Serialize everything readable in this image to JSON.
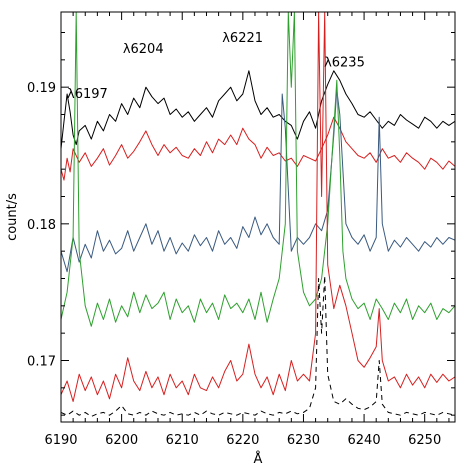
{
  "chart_data": {
    "type": "line",
    "title": "",
    "xlabel": "Å",
    "ylabel": "count/s",
    "xlim": [
      6190,
      6255
    ],
    "ylim": [
      0.1655,
      0.1955
    ],
    "grid": false,
    "legend": "none",
    "xticks": [
      6190,
      6200,
      6210,
      6220,
      6230,
      6240,
      6250
    ],
    "yticks": [
      0.17,
      0.18,
      0.19
    ],
    "ytick_labels": [
      "0.17",
      "0.18",
      "0.19"
    ],
    "annotations": [
      {
        "text": "λ6197",
        "x": 6191.0,
        "y": 0.1892
      },
      {
        "text": "λ6204",
        "x": 6200.2,
        "y": 0.1925
      },
      {
        "text": "λ6221",
        "x": 6216.6,
        "y": 0.1933
      },
      {
        "text": "λ6235",
        "x": 6233.4,
        "y": 0.1915
      }
    ],
    "series": [
      {
        "color": "#000000",
        "style": "solid",
        "x": [
          6190.0,
          6190.5,
          6191.0,
          6191.5,
          6192.0,
          6192.5,
          6193.0,
          6194.0,
          6195.0,
          6196.0,
          6197.0,
          6198.0,
          6199.0,
          6200.0,
          6201.0,
          6202.0,
          6203.0,
          6204.0,
          6205.0,
          6206.0,
          6207.0,
          6208.0,
          6209.0,
          6210.0,
          6211.0,
          6212.0,
          6213.0,
          6214.0,
          6215.0,
          6216.0,
          6217.0,
          6218.0,
          6219.0,
          6220.0,
          6221.0,
          6222.0,
          6223.0,
          6224.0,
          6225.0,
          6226.0,
          6227.0,
          6228.0,
          6229.0,
          6230.0,
          6231.0,
          6232.0,
          6233.0,
          6234.0,
          6235.0,
          6236.0,
          6237.0,
          6238.0,
          6239.0,
          6240.0,
          6241.0,
          6242.0,
          6243.0,
          6244.0,
          6245.0,
          6246.0,
          6247.0,
          6248.0,
          6249.0,
          6250.0,
          6251.0,
          6252.0,
          6253.0,
          6254.0,
          6255.0
        ],
        "y": [
          0.1855,
          0.1875,
          0.1895,
          0.1882,
          0.1865,
          0.1858,
          0.1868,
          0.1872,
          0.1862,
          0.1875,
          0.1868,
          0.188,
          0.1875,
          0.1888,
          0.188,
          0.1892,
          0.1885,
          0.19,
          0.1893,
          0.1888,
          0.1892,
          0.188,
          0.1884,
          0.1878,
          0.1882,
          0.1875,
          0.188,
          0.1885,
          0.1878,
          0.189,
          0.1895,
          0.19,
          0.189,
          0.1895,
          0.1912,
          0.189,
          0.188,
          0.1885,
          0.1878,
          0.188,
          0.1875,
          0.1872,
          0.1862,
          0.1875,
          0.1882,
          0.187,
          0.189,
          0.1902,
          0.1912,
          0.1905,
          0.1895,
          0.1888,
          0.188,
          0.1878,
          0.1882,
          0.1876,
          0.187,
          0.1875,
          0.1872,
          0.188,
          0.1876,
          0.1873,
          0.187,
          0.1878,
          0.1875,
          0.187,
          0.1875,
          0.1872,
          0.1875
        ]
      },
      {
        "color": "#d62020",
        "style": "solid",
        "x": [
          6190.0,
          6190.5,
          6191.0,
          6191.5,
          6192.0,
          6193.0,
          6194.0,
          6195.0,
          6196.0,
          6197.0,
          6198.0,
          6199.0,
          6200.0,
          6201.0,
          6202.0,
          6203.0,
          6204.0,
          6205.0,
          6206.0,
          6207.0,
          6208.0,
          6209.0,
          6210.0,
          6211.0,
          6212.0,
          6213.0,
          6214.0,
          6215.0,
          6216.0,
          6217.0,
          6218.0,
          6219.0,
          6220.0,
          6221.0,
          6222.0,
          6223.0,
          6224.0,
          6225.0,
          6226.0,
          6227.0,
          6228.0,
          6229.0,
          6230.0,
          6231.0,
          6232.0,
          6233.0,
          6234.0,
          6235.0,
          6236.0,
          6237.0,
          6238.0,
          6239.0,
          6240.0,
          6241.0,
          6242.0,
          6243.0,
          6244.0,
          6245.0,
          6246.0,
          6247.0,
          6248.0,
          6249.0,
          6250.0,
          6251.0,
          6252.0,
          6253.0,
          6254.0,
          6255.0
        ],
        "y": [
          0.184,
          0.1832,
          0.1848,
          0.1838,
          0.1855,
          0.1845,
          0.1852,
          0.1842,
          0.1848,
          0.1855,
          0.1843,
          0.185,
          0.1858,
          0.1848,
          0.1853,
          0.186,
          0.1868,
          0.1858,
          0.185,
          0.1858,
          0.1852,
          0.1856,
          0.185,
          0.1848,
          0.1855,
          0.185,
          0.186,
          0.1852,
          0.1862,
          0.1858,
          0.1865,
          0.1858,
          0.187,
          0.1862,
          0.1858,
          0.1848,
          0.1856,
          0.185,
          0.1852,
          0.1846,
          0.1848,
          0.1842,
          0.185,
          0.1848,
          0.1846,
          0.1855,
          0.1865,
          0.1878,
          0.187,
          0.186,
          0.1855,
          0.185,
          0.1848,
          0.1852,
          0.1845,
          0.1855,
          0.1848,
          0.185,
          0.1845,
          0.1852,
          0.1848,
          0.1845,
          0.184,
          0.1848,
          0.1845,
          0.184,
          0.1846,
          0.1842
        ]
      },
      {
        "color": "#3a5a80",
        "style": "solid",
        "x": [
          6190.0,
          6191.0,
          6192.0,
          6193.0,
          6194.0,
          6195.0,
          6196.0,
          6197.0,
          6198.0,
          6199.0,
          6200.0,
          6201.0,
          6202.0,
          6203.0,
          6204.0,
          6205.0,
          6206.0,
          6207.0,
          6208.0,
          6209.0,
          6210.0,
          6211.0,
          6212.0,
          6213.0,
          6214.0,
          6215.0,
          6216.0,
          6217.0,
          6218.0,
          6219.0,
          6220.0,
          6221.0,
          6222.0,
          6223.0,
          6224.0,
          6225.0,
          6226.0,
          6226.5,
          6227.0,
          6228.0,
          6229.0,
          6230.0,
          6231.0,
          6232.0,
          6233.0,
          6234.0,
          6235.0,
          6235.5,
          6236.0,
          6237.0,
          6238.0,
          6239.0,
          6240.0,
          6241.0,
          6242.0,
          6242.5,
          6243.0,
          6244.0,
          6245.0,
          6246.0,
          6247.0,
          6248.0,
          6249.0,
          6250.0,
          6251.0,
          6252.0,
          6253.0,
          6254.0,
          6255.0
        ],
        "y": [
          0.178,
          0.1765,
          0.179,
          0.1772,
          0.1785,
          0.1775,
          0.1795,
          0.178,
          0.1788,
          0.1778,
          0.1782,
          0.1795,
          0.178,
          0.179,
          0.18,
          0.1785,
          0.1795,
          0.178,
          0.179,
          0.1778,
          0.1786,
          0.178,
          0.1792,
          0.1784,
          0.179,
          0.178,
          0.1795,
          0.1785,
          0.179,
          0.1782,
          0.1798,
          0.179,
          0.1805,
          0.1792,
          0.18,
          0.179,
          0.1785,
          0.1895,
          0.187,
          0.178,
          0.179,
          0.1785,
          0.179,
          0.18,
          0.1795,
          0.181,
          0.1865,
          0.1898,
          0.188,
          0.18,
          0.179,
          0.1785,
          0.1792,
          0.178,
          0.179,
          0.1878,
          0.18,
          0.178,
          0.1788,
          0.1783,
          0.179,
          0.1785,
          0.178,
          0.1787,
          0.1783,
          0.179,
          0.1785,
          0.179,
          0.1788
        ]
      },
      {
        "color": "#2ea02e",
        "style": "solid",
        "x": [
          6190.0,
          6191.0,
          6192.0,
          6192.5,
          6193.0,
          6194.0,
          6195.0,
          6196.0,
          6197.0,
          6198.0,
          6199.0,
          6200.0,
          6201.0,
          6202.0,
          6203.0,
          6204.0,
          6205.0,
          6206.0,
          6207.0,
          6208.0,
          6209.0,
          6210.0,
          6211.0,
          6212.0,
          6213.0,
          6214.0,
          6215.0,
          6216.0,
          6217.0,
          6218.0,
          6219.0,
          6220.0,
          6221.0,
          6222.0,
          6223.0,
          6224.0,
          6225.0,
          6226.0,
          6227.0,
          6227.5,
          6228.0,
          6228.5,
          6229.0,
          6230.0,
          6231.0,
          6232.0,
          6233.0,
          6234.0,
          6235.0,
          6235.5,
          6236.0,
          6236.5,
          6237.0,
          6238.0,
          6239.0,
          6240.0,
          6241.0,
          6242.0,
          6243.0,
          6244.0,
          6245.0,
          6246.0,
          6247.0,
          6248.0,
          6249.0,
          6250.0,
          6251.0,
          6252.0,
          6253.0,
          6254.0,
          6255.0
        ],
        "y": [
          0.173,
          0.175,
          0.179,
          0.1955,
          0.178,
          0.174,
          0.1725,
          0.1742,
          0.173,
          0.1745,
          0.1728,
          0.174,
          0.1732,
          0.175,
          0.1735,
          0.1748,
          0.1738,
          0.1742,
          0.175,
          0.173,
          0.1745,
          0.1735,
          0.174,
          0.1728,
          0.1745,
          0.1735,
          0.1742,
          0.173,
          0.1748,
          0.1738,
          0.1742,
          0.1735,
          0.1745,
          0.173,
          0.175,
          0.1728,
          0.1745,
          0.176,
          0.18,
          0.1955,
          0.19,
          0.1955,
          0.178,
          0.175,
          0.174,
          0.1745,
          0.176,
          0.18,
          0.187,
          0.1905,
          0.185,
          0.178,
          0.176,
          0.1745,
          0.1738,
          0.1742,
          0.173,
          0.1745,
          0.1738,
          0.173,
          0.1742,
          0.1735,
          0.1745,
          0.173,
          0.174,
          0.1735,
          0.1742,
          0.173,
          0.1738,
          0.1735,
          0.174
        ]
      },
      {
        "color": "#d62020",
        "style": "solid",
        "x": [
          6190.0,
          6191.0,
          6192.0,
          6193.0,
          6194.0,
          6195.0,
          6196.0,
          6197.0,
          6198.0,
          6199.0,
          6200.0,
          6201.0,
          6202.0,
          6203.0,
          6204.0,
          6205.0,
          6206.0,
          6207.0,
          6208.0,
          6209.0,
          6210.0,
          6211.0,
          6212.0,
          6213.0,
          6214.0,
          6215.0,
          6216.0,
          6217.0,
          6218.0,
          6219.0,
          6220.0,
          6221.0,
          6222.0,
          6223.0,
          6224.0,
          6225.0,
          6226.0,
          6227.0,
          6228.0,
          6229.0,
          6230.0,
          6231.0,
          6232.0,
          6232.5,
          6233.0,
          6233.5,
          6234.0,
          6235.0,
          6236.0,
          6237.0,
          6238.0,
          6239.0,
          6240.0,
          6241.0,
          6242.0,
          6242.5,
          6243.0,
          6244.0,
          6245.0,
          6246.0,
          6247.0,
          6248.0,
          6249.0,
          6250.0,
          6251.0,
          6252.0,
          6253.0,
          6254.0,
          6255.0
        ],
        "y": [
          0.1675,
          0.1685,
          0.167,
          0.169,
          0.1678,
          0.1688,
          0.1675,
          0.1685,
          0.1672,
          0.169,
          0.168,
          0.1702,
          0.1685,
          0.1678,
          0.1692,
          0.168,
          0.1688,
          0.1675,
          0.169,
          0.168,
          0.1685,
          0.1675,
          0.169,
          0.168,
          0.1678,
          0.1688,
          0.168,
          0.1692,
          0.17,
          0.1685,
          0.169,
          0.1712,
          0.169,
          0.168,
          0.1688,
          0.1675,
          0.169,
          0.1678,
          0.17,
          0.1685,
          0.169,
          0.1685,
          0.172,
          0.1955,
          0.182,
          0.1955,
          0.177,
          0.1738,
          0.1755,
          0.174,
          0.172,
          0.17,
          0.1695,
          0.1702,
          0.171,
          0.1738,
          0.17,
          0.1685,
          0.1688,
          0.168,
          0.169,
          0.1682,
          0.1688,
          0.168,
          0.169,
          0.1684,
          0.169,
          0.1685,
          0.1688
        ]
      },
      {
        "color": "#000000",
        "style": "dashed",
        "x": [
          6190.0,
          6191.0,
          6192.0,
          6193.0,
          6194.0,
          6195.0,
          6196.0,
          6197.0,
          6198.0,
          6199.0,
          6200.0,
          6201.0,
          6202.0,
          6203.0,
          6204.0,
          6205.0,
          6206.0,
          6207.0,
          6208.0,
          6209.0,
          6210.0,
          6211.0,
          6212.0,
          6213.0,
          6214.0,
          6215.0,
          6216.0,
          6217.0,
          6218.0,
          6219.0,
          6220.0,
          6221.0,
          6222.0,
          6223.0,
          6224.0,
          6225.0,
          6226.0,
          6227.0,
          6228.0,
          6229.0,
          6230.0,
          6231.0,
          6232.0,
          6232.5,
          6233.0,
          6233.5,
          6234.0,
          6235.0,
          6236.0,
          6237.0,
          6238.0,
          6239.0,
          6240.0,
          6241.0,
          6242.0,
          6242.5,
          6243.0,
          6244.0,
          6245.0,
          6246.0,
          6247.0,
          6248.0,
          6249.0,
          6250.0,
          6251.0,
          6252.0,
          6253.0,
          6254.0,
          6255.0
        ],
        "y": [
          0.1662,
          0.166,
          0.1663,
          0.166,
          0.1662,
          0.1659,
          0.1661,
          0.1662,
          0.166,
          0.1663,
          0.1667,
          0.1661,
          0.166,
          0.1662,
          0.166,
          0.1663,
          0.1661,
          0.166,
          0.1662,
          0.166,
          0.1661,
          0.166,
          0.1662,
          0.166,
          0.1663,
          0.1661,
          0.166,
          0.1662,
          0.1661,
          0.166,
          0.1662,
          0.1661,
          0.166,
          0.1663,
          0.1661,
          0.166,
          0.1662,
          0.1661,
          0.1663,
          0.1661,
          0.1662,
          0.1665,
          0.168,
          0.176,
          0.172,
          0.1762,
          0.169,
          0.167,
          0.1668,
          0.1672,
          0.1668,
          0.1665,
          0.1664,
          0.1666,
          0.167,
          0.17,
          0.1668,
          0.1662,
          0.1661,
          0.166,
          0.1662,
          0.1661,
          0.166,
          0.1662,
          0.1661,
          0.166,
          0.1662,
          0.1661,
          0.166
        ]
      }
    ]
  }
}
